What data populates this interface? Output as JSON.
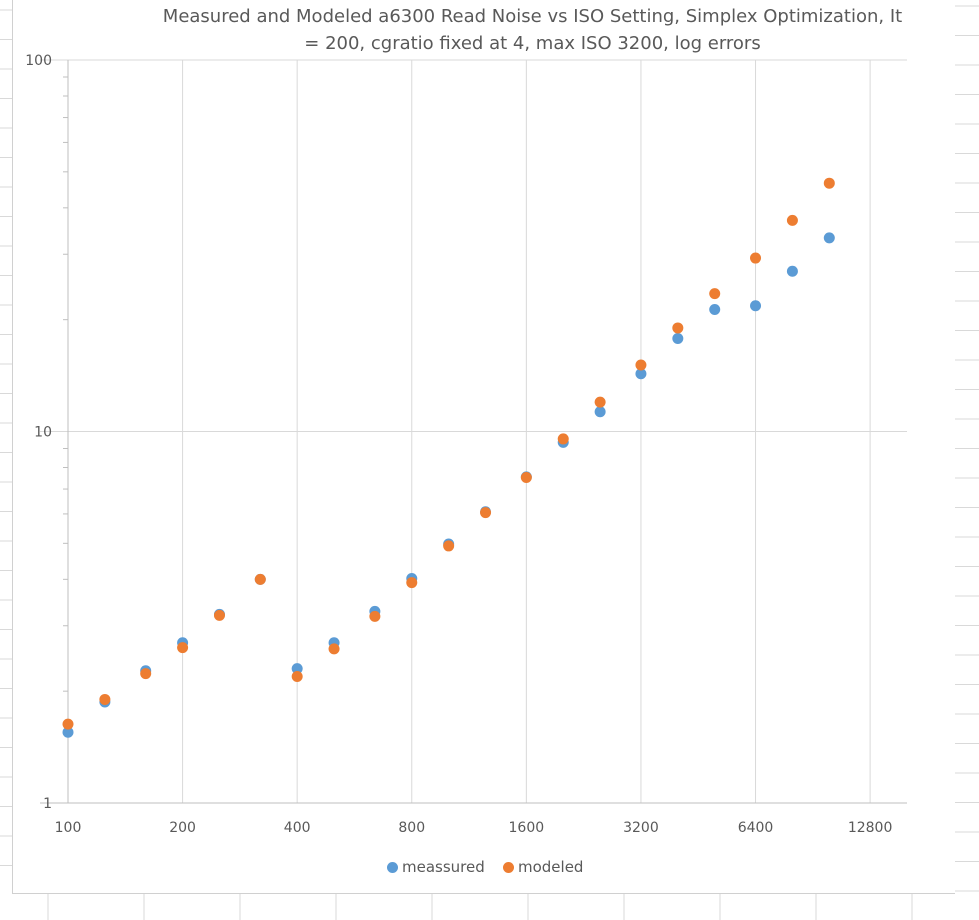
{
  "title_lines": [
    "Measured and Modeled a6300 Read Noise vs ISO Setting,  Simplex Optimization, It",
    "= 200, cgratio fixed at 4, max ISO 3200, log errors"
  ],
  "chart_data": {
    "type": "scatter",
    "title": "Measured and Modeled a6300 Read Noise vs ISO Setting,  Simplex Optimization, It = 200, cgratio fixed at 4, max ISO 3200, log errors",
    "xlabel": "",
    "ylabel": "",
    "xscale": "log2",
    "yscale": "log10",
    "xlim": [
      100,
      16000
    ],
    "ylim": [
      1,
      100
    ],
    "xticks": [
      100,
      200,
      400,
      800,
      1600,
      3200,
      6400,
      12800
    ],
    "xtick_labels": [
      "100",
      "200",
      "400",
      "800",
      "1600",
      "3200",
      "6400",
      "12800"
    ],
    "yticks": [
      1,
      10,
      100
    ],
    "ytick_labels": [
      "1",
      "10",
      "100"
    ],
    "grid": true,
    "legend_position": "bottom",
    "x": [
      100,
      125,
      160,
      200,
      250,
      320,
      400,
      500,
      640,
      800,
      1000,
      1250,
      1600,
      2000,
      2500,
      3200,
      4000,
      5000,
      6400,
      8000,
      10000
    ],
    "series": [
      {
        "name": "meassured",
        "color": "#5B9BD5",
        "values": [
          1.55,
          1.87,
          2.27,
          2.7,
          3.22,
          4.0,
          2.3,
          2.7,
          3.28,
          4.02,
          4.98,
          6.08,
          7.55,
          9.35,
          11.3,
          14.3,
          17.8,
          21.3,
          21.8,
          27.0,
          33.2
        ]
      },
      {
        "name": "modeled",
        "color": "#ED7D31",
        "values": [
          1.63,
          1.9,
          2.23,
          2.62,
          3.2,
          4.0,
          2.19,
          2.6,
          3.18,
          3.92,
          4.92,
          6.05,
          7.52,
          9.55,
          12.0,
          15.1,
          19.0,
          23.5,
          29.3,
          37.0,
          46.6
        ]
      }
    ]
  }
}
